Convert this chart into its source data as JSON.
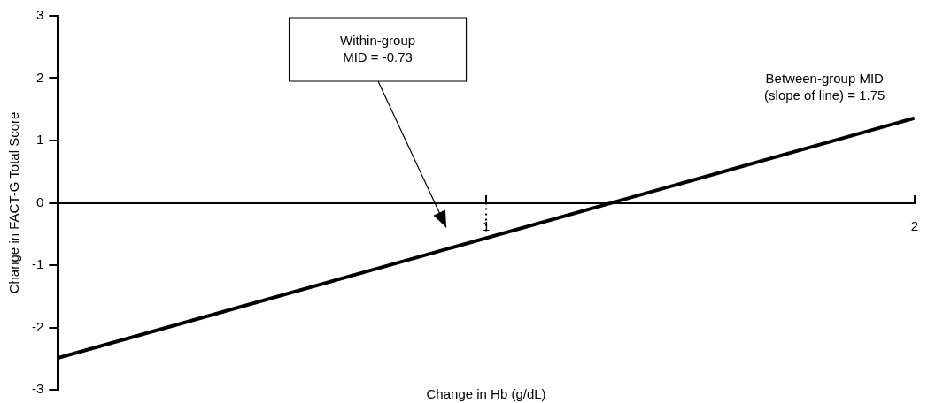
{
  "chart_data": {
    "type": "line",
    "xlabel": "Change in Hb (g/dL)",
    "ylabel": "Change in FACT-G Total Score",
    "xlim": [
      0,
      2
    ],
    "xticks": [
      1,
      2
    ],
    "ylim": [
      -3,
      3
    ],
    "yticks": [
      -3,
      -2,
      -1,
      0,
      1,
      2,
      3
    ],
    "grid": false,
    "legend": false,
    "marker": "none",
    "series": [
      {
        "color": "#000000",
        "x": [
          0,
          2
        ],
        "values": [
          -2.49,
          1.36
        ],
        "line_style": "solid"
      },
      {
        "color": "#000000",
        "x": [
          1,
          1
        ],
        "values": [
          0,
          -0.5
        ],
        "line_style": "dotted"
      }
    ],
    "annotations": [
      "Within-group\nMID = -0.73",
      "Between-group MID\n(slope of line) = 1.75"
    ]
  }
}
